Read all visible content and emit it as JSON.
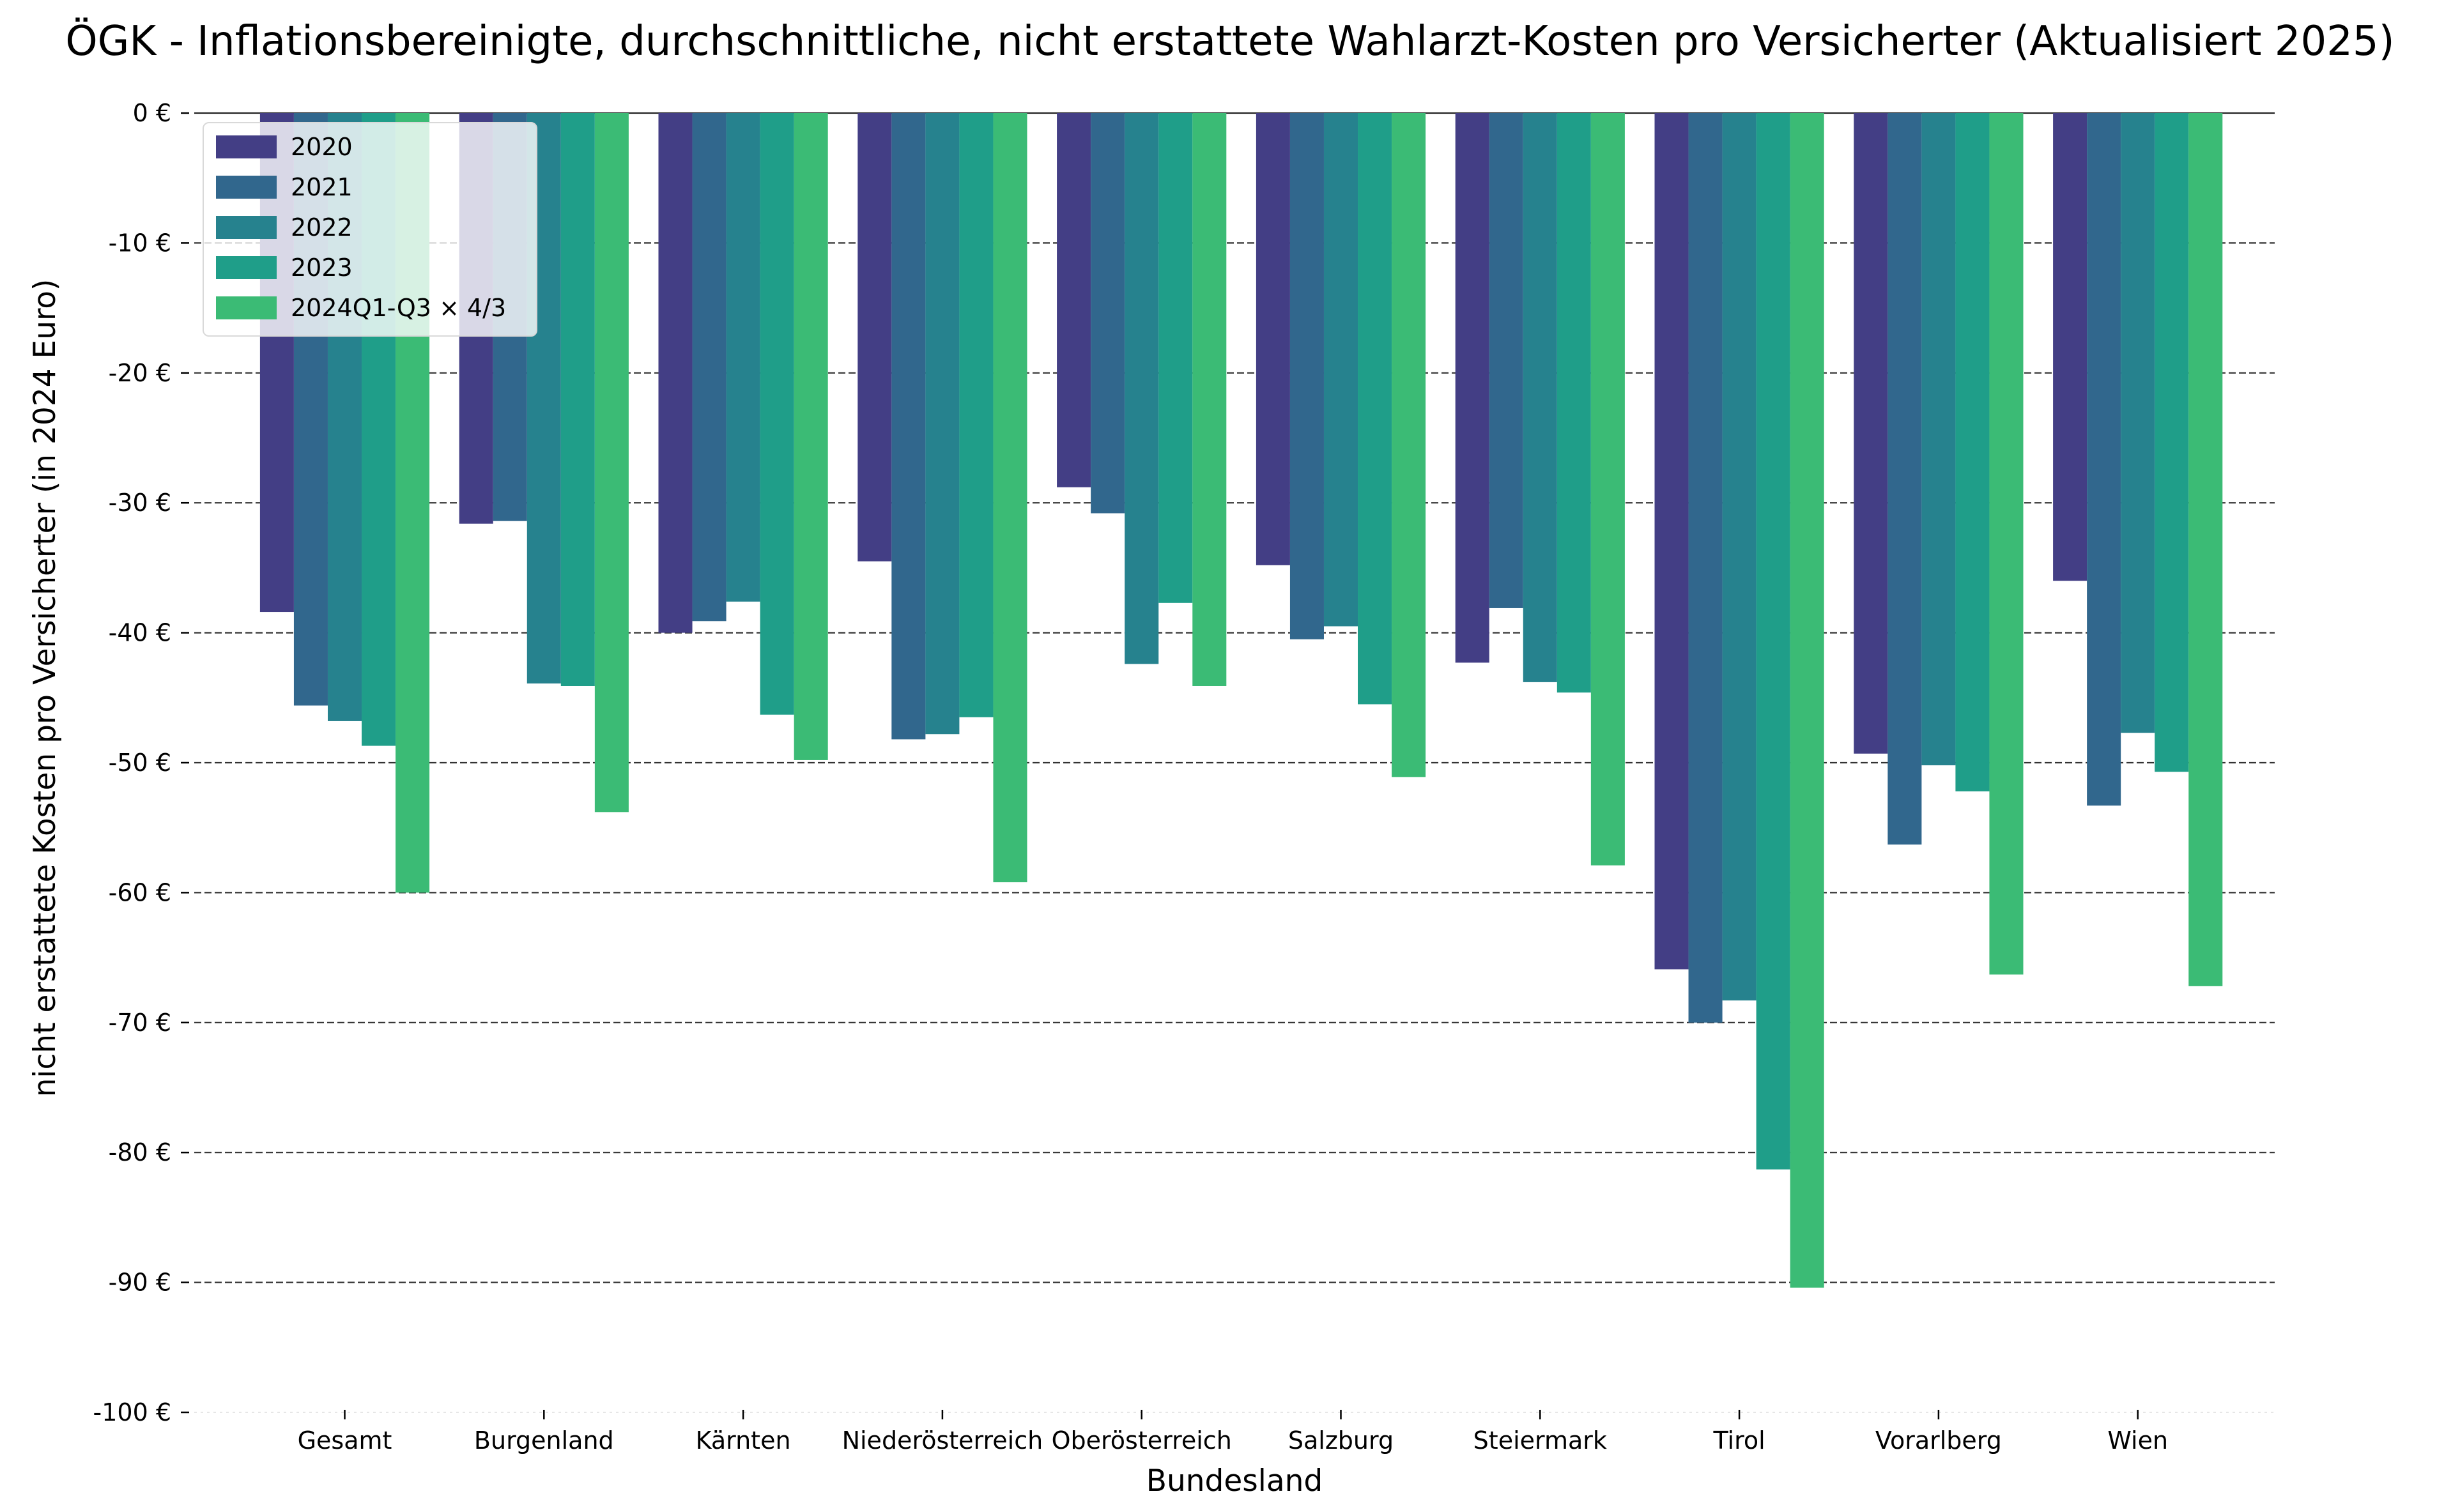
{
  "chart_data": {
    "type": "bar",
    "title": "ÖGK - Inflationsbereinigte, durchschnittliche, nicht erstattete Wahlarzt-Kosten pro Versicherter (Aktualisiert 2025)",
    "xlabel": "Bundesland",
    "ylabel": "nicht erstattete Kosten pro Versicherter (in 2024 Euro)",
    "ylim": [
      -100,
      0
    ],
    "yticks": [
      0,
      -10,
      -20,
      -30,
      -40,
      -50,
      -60,
      -70,
      -80,
      -90,
      -100
    ],
    "ytick_labels": [
      "0 €",
      "-10 €",
      "-20 €",
      "-30 €",
      "-40 €",
      "-50 €",
      "-60 €",
      "-70 €",
      "-80 €",
      "-90 €",
      "-100 €"
    ],
    "grid": "horizontal dashed",
    "legend_position": "top-left",
    "categories": [
      "Gesamt",
      "Burgenland",
      "Kärnten",
      "Niederösterreich",
      "Oberösterreich",
      "Salzburg",
      "Steiermark",
      "Tirol",
      "Vorarlberg",
      "Wien"
    ],
    "series": [
      {
        "name": "2020",
        "color": "#433e85",
        "values": [
          -38.4,
          -31.6,
          -40.0,
          -34.5,
          -28.8,
          -34.8,
          -42.3,
          -65.9,
          -49.3,
          -36.0
        ]
      },
      {
        "name": "2021",
        "color": "#31678d",
        "values": [
          -45.6,
          -31.4,
          -39.1,
          -48.2,
          -30.8,
          -40.5,
          -38.1,
          -70.0,
          -56.3,
          -53.3
        ]
      },
      {
        "name": "2022",
        "color": "#26828e",
        "values": [
          -46.8,
          -43.9,
          -37.6,
          -47.8,
          -42.4,
          -39.5,
          -43.8,
          -68.3,
          -50.2,
          -47.7
        ]
      },
      {
        "name": "2023",
        "color": "#1f9e89",
        "values": [
          -48.7,
          -44.1,
          -46.3,
          -46.5,
          -37.7,
          -45.5,
          -44.6,
          -81.3,
          -52.2,
          -50.7
        ]
      },
      {
        "name": "2024Q1-Q3 × 4/3",
        "color": "#3bbb75",
        "values": [
          -60.0,
          -53.8,
          -49.8,
          -59.2,
          -44.1,
          -51.1,
          -57.9,
          -90.4,
          -66.3,
          -67.2
        ]
      }
    ]
  }
}
